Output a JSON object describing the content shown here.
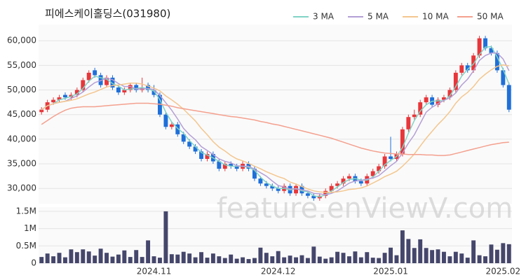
{
  "chart_data": {
    "type": "candlestick",
    "title": "피에스케이홀딩스(031980)",
    "watermark": "feature.enViewV.com",
    "legend": "top-right",
    "grid": true,
    "up_color": "#e8363a",
    "down_color": "#1e6fd9",
    "categories": [
      null,
      null,
      null,
      null,
      null,
      null,
      null,
      null,
      null,
      null,
      null,
      null,
      null,
      null,
      null,
      null,
      null,
      null,
      null,
      "2024.11",
      null,
      null,
      null,
      null,
      null,
      null,
      null,
      null,
      null,
      null,
      null,
      null,
      null,
      null,
      null,
      null,
      null,
      null,
      null,
      null,
      "2024.12",
      null,
      null,
      null,
      null,
      null,
      null,
      null,
      null,
      null,
      null,
      null,
      null,
      null,
      null,
      null,
      null,
      null,
      null,
      "2025.01",
      null,
      null,
      null,
      null,
      null,
      null,
      null,
      null,
      null,
      null,
      null,
      null,
      null,
      null,
      null,
      null,
      null,
      null,
      "2025.02",
      null
    ],
    "ohlc": [
      [
        45500,
        46500,
        45000,
        46000
      ],
      [
        46000,
        48000,
        45500,
        47500
      ],
      [
        47500,
        48500,
        47000,
        48000
      ],
      [
        48000,
        49000,
        47500,
        48500
      ],
      [
        49000,
        49500,
        48000,
        48500
      ],
      [
        48500,
        49500,
        48000,
        49000
      ],
      [
        49000,
        50500,
        48500,
        50000
      ],
      [
        50000,
        52500,
        49500,
        52000
      ],
      [
        52000,
        54000,
        51500,
        53500
      ],
      [
        54000,
        54500,
        52500,
        53000
      ],
      [
        53000,
        53500,
        50500,
        51000
      ],
      [
        51000,
        53000,
        50500,
        52500
      ],
      [
        52500,
        53000,
        50000,
        50500
      ],
      [
        50500,
        51000,
        49000,
        49500
      ],
      [
        49500,
        50500,
        49000,
        50000
      ],
      [
        50000,
        51500,
        49500,
        51000
      ],
      [
        51000,
        51500,
        49500,
        50000
      ],
      [
        50000,
        52500,
        49500,
        50500
      ],
      [
        51000,
        51500,
        49500,
        50000
      ],
      [
        50000,
        51000,
        48500,
        49000
      ],
      [
        49000,
        49500,
        44500,
        45000
      ],
      [
        45000,
        45500,
        42000,
        42500
      ],
      [
        42500,
        43500,
        42000,
        43000
      ],
      [
        43000,
        43500,
        40500,
        41000
      ],
      [
        41000,
        41500,
        39000,
        39500
      ],
      [
        39500,
        40000,
        38000,
        38500
      ],
      [
        38500,
        39000,
        37000,
        37500
      ],
      [
        37500,
        38000,
        35500,
        36000
      ],
      [
        36000,
        37500,
        35500,
        37000
      ],
      [
        37000,
        37500,
        35000,
        35500
      ],
      [
        35500,
        36000,
        33500,
        34000
      ],
      [
        34000,
        35500,
        33500,
        35000
      ],
      [
        35000,
        35500,
        34000,
        34500
      ],
      [
        34500,
        35000,
        33500,
        34000
      ],
      [
        34000,
        35500,
        33500,
        35000
      ],
      [
        35000,
        35500,
        33500,
        34000
      ],
      [
        34000,
        34500,
        31500,
        32000
      ],
      [
        32000,
        32500,
        30500,
        31000
      ],
      [
        31000,
        31500,
        30000,
        30500
      ],
      [
        30500,
        31000,
        29500,
        30000
      ],
      [
        30000,
        30500,
        29000,
        29500
      ],
      [
        29500,
        31000,
        29000,
        30500
      ],
      [
        30500,
        31000,
        28500,
        29000
      ],
      [
        29000,
        31000,
        28500,
        30500
      ],
      [
        30500,
        31000,
        28500,
        29000
      ],
      [
        29000,
        29500,
        28000,
        28500
      ],
      [
        28500,
        29000,
        27500,
        28000
      ],
      [
        28000,
        29000,
        27500,
        28500
      ],
      [
        28500,
        30000,
        28000,
        29500
      ],
      [
        29500,
        31000,
        29000,
        30500
      ],
      [
        30500,
        31500,
        30000,
        31000
      ],
      [
        31000,
        32500,
        30500,
        32000
      ],
      [
        32000,
        33000,
        31500,
        32500
      ],
      [
        32500,
        33000,
        31000,
        31500
      ],
      [
        31500,
        32000,
        30500,
        31000
      ],
      [
        31000,
        33000,
        30500,
        32500
      ],
      [
        32500,
        34000,
        32000,
        33500
      ],
      [
        33500,
        35000,
        33000,
        34500
      ],
      [
        34500,
        37000,
        34000,
        36500
      ],
      [
        36500,
        40500,
        35500,
        36000
      ],
      [
        36000,
        37500,
        35500,
        37000
      ],
      [
        37000,
        42500,
        36500,
        42000
      ],
      [
        42000,
        45000,
        41500,
        44500
      ],
      [
        44500,
        46000,
        44000,
        45000
      ],
      [
        45000,
        48000,
        44500,
        47500
      ],
      [
        47500,
        49000,
        47000,
        48500
      ],
      [
        48500,
        49000,
        46500,
        47000
      ],
      [
        47000,
        48500,
        46500,
        48000
      ],
      [
        48000,
        49000,
        47500,
        48500
      ],
      [
        48500,
        50500,
        48000,
        50000
      ],
      [
        50000,
        54000,
        49500,
        53500
      ],
      [
        53500,
        55500,
        53000,
        55000
      ],
      [
        55000,
        55500,
        53500,
        54000
      ],
      [
        54000,
        57500,
        53500,
        57000
      ],
      [
        57000,
        61000,
        56500,
        60500
      ],
      [
        60500,
        61000,
        58000,
        58500
      ],
      [
        58500,
        59000,
        57000,
        57500
      ],
      [
        57500,
        58000,
        53500,
        54000
      ],
      [
        54000,
        54500,
        50500,
        51000
      ],
      [
        51000,
        51500,
        45500,
        46000
      ]
    ],
    "ylim": [
      26900,
      63300
    ],
    "yticks": [
      {
        "value": 30000,
        "label": "30,000"
      },
      {
        "value": 35000,
        "label": "35,000"
      },
      {
        "value": 40000,
        "label": "40,000"
      },
      {
        "value": 45000,
        "label": "45,000"
      },
      {
        "value": 50000,
        "label": "50,000"
      },
      {
        "value": 55000,
        "label": "55,000"
      },
      {
        "value": 60000,
        "label": "60,000"
      }
    ],
    "series": [
      {
        "name": "3 MA",
        "color": "#7fd3c6",
        "values": [
          46000,
          46800,
          47200,
          48000,
          48300,
          48700,
          49200,
          50300,
          51800,
          52800,
          52500,
          52200,
          51300,
          50800,
          50000,
          50200,
          50300,
          50500,
          50200,
          49800,
          48000,
          45500,
          43500,
          42200,
          41200,
          39700,
          38500,
          37300,
          36800,
          36200,
          35500,
          34800,
          34500,
          34500,
          34500,
          34300,
          33700,
          32300,
          31200,
          30500,
          30000,
          30000,
          29700,
          30000,
          29500,
          29300,
          28500,
          28300,
          28700,
          29500,
          30300,
          31200,
          31800,
          32000,
          31700,
          31700,
          32300,
          33500,
          34800,
          35700,
          36500,
          38300,
          41200,
          43800,
          45700,
          47000,
          47700,
          47800,
          47800,
          48800,
          50700,
          52800,
          54200,
          55300,
          57200,
          58700,
          58800,
          56700,
          54200,
          51200
        ]
      },
      {
        "name": "5 MA",
        "color": "#b49fd6",
        "values": [
          46000,
          46800,
          47200,
          47500,
          47700,
          48300,
          48800,
          49600,
          50600,
          51500,
          51900,
          52400,
          52100,
          51300,
          50700,
          50700,
          50200,
          50200,
          50300,
          50100,
          48900,
          47400,
          45900,
          44100,
          42200,
          40900,
          39900,
          38500,
          37700,
          36900,
          36000,
          35500,
          35200,
          34600,
          34500,
          34500,
          33900,
          33200,
          32500,
          31500,
          30600,
          30300,
          29900,
          29900,
          29700,
          29500,
          29000,
          28900,
          28700,
          29000,
          29500,
          30300,
          31100,
          31500,
          31600,
          31900,
          32100,
          32600,
          33600,
          34600,
          35500,
          37200,
          39200,
          40900,
          43200,
          45500,
          46500,
          47200,
          47900,
          48400,
          49400,
          51000,
          52200,
          53900,
          56000,
          57000,
          57500,
          57500,
          56300,
          53900
        ]
      },
      {
        "name": "10 MA",
        "color": "#f4c68e",
        "values": [
          46000,
          46800,
          47200,
          47500,
          47700,
          47900,
          48200,
          48700,
          49200,
          49600,
          50100,
          50600,
          50900,
          51000,
          51200,
          51400,
          51400,
          51200,
          50800,
          50400,
          49800,
          48800,
          48000,
          47100,
          46100,
          44900,
          43700,
          42200,
          40900,
          39500,
          38400,
          37600,
          36700,
          36000,
          35600,
          35100,
          34500,
          34000,
          33400,
          32900,
          32400,
          32000,
          31300,
          30900,
          30400,
          29900,
          29500,
          29300,
          29200,
          29200,
          29300,
          29500,
          29800,
          29900,
          30100,
          30500,
          31100,
          31700,
          32400,
          32900,
          33500,
          34500,
          35700,
          37000,
          38600,
          40200,
          41600,
          43000,
          44200,
          45600,
          47300,
          48600,
          49500,
          50700,
          52200,
          53200,
          54100,
          54800,
          55100,
          54900
        ]
      },
      {
        "name": "50 MA",
        "color": "#f4a08e",
        "values": [
          43000,
          43800,
          44600,
          45300,
          45900,
          46300,
          46500,
          46600,
          46600,
          46600,
          46700,
          46800,
          46900,
          47000,
          47100,
          47200,
          47300,
          47300,
          47300,
          47200,
          47100,
          46900,
          46700,
          46400,
          46200,
          46000,
          45800,
          45600,
          45400,
          45200,
          45000,
          44800,
          44600,
          44500,
          44300,
          44100,
          43900,
          43600,
          43400,
          43100,
          42900,
          42600,
          42300,
          42000,
          41700,
          41400,
          41100,
          40800,
          40500,
          40200,
          39800,
          39400,
          39000,
          38600,
          38200,
          37900,
          37600,
          37400,
          37200,
          37100,
          37000,
          37000,
          36900,
          36900,
          36900,
          36800,
          36800,
          36700,
          36700,
          36800,
          37100,
          37400,
          37700,
          38000,
          38300,
          38600,
          38900,
          39100,
          39300,
          39400
        ]
      }
    ],
    "volume": {
      "color": "#45466b",
      "values": [
        180000,
        280000,
        200000,
        300000,
        170000,
        400000,
        320000,
        400000,
        340000,
        220000,
        420000,
        300000,
        190000,
        250000,
        370000,
        180000,
        380000,
        180000,
        660000,
        200000,
        160000,
        1500000,
        260000,
        250000,
        330000,
        280000,
        170000,
        320000,
        160000,
        280000,
        200000,
        150000,
        250000,
        130000,
        170000,
        120000,
        150000,
        450000,
        300000,
        200000,
        350000,
        170000,
        220000,
        170000,
        230000,
        150000,
        480000,
        190000,
        130000,
        170000,
        330000,
        300000,
        200000,
        340000,
        170000,
        320000,
        160000,
        150000,
        300000,
        450000,
        230000,
        950000,
        700000,
        440000,
        690000,
        440000,
        380000,
        400000,
        330000,
        200000,
        330000,
        280000,
        160000,
        660000,
        230000,
        200000,
        540000,
        390000,
        580000,
        550000
      ],
      "ylim": [
        0,
        1620000
      ],
      "yticks": [
        0,
        {
          "value": 500000,
          "label": "0.5M"
        },
        {
          "value": 1000000,
          "label": "1M"
        },
        {
          "value": 1500000,
          "label": "1.5M"
        }
      ]
    }
  }
}
